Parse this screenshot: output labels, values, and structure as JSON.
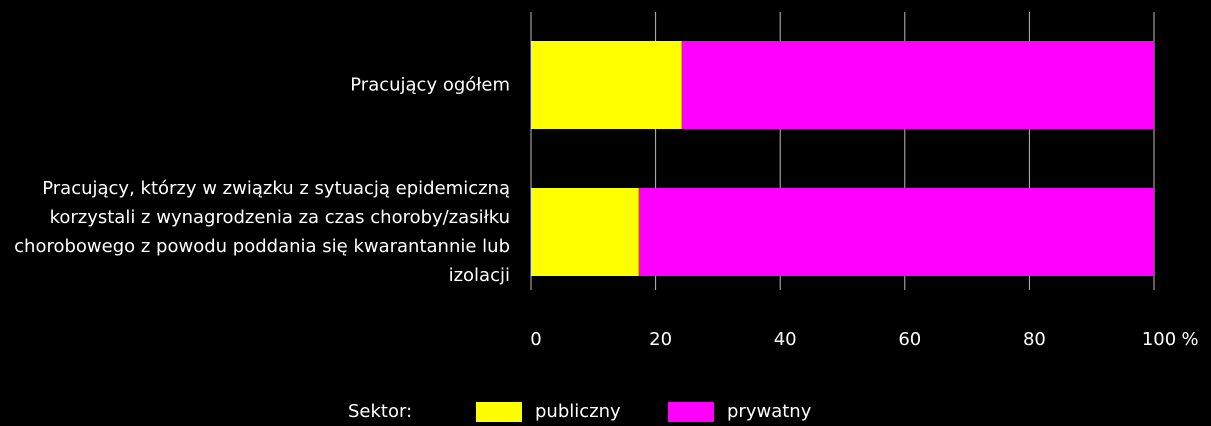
{
  "chart_data": {
    "type": "stacked-barh",
    "categories": [
      "Pracujący ogółem",
      "Pracujący, którzy w związku z sytuacją epidemiczną korzystali z wynagrodzenia za czas choroby/zasiłku chorobowego z powodu poddania się kwarantannie lub izolacji"
    ],
    "series": [
      {
        "name": "publiczny",
        "color": "#ffff00",
        "values": [
          24.2,
          17.3
        ]
      },
      {
        "name": "prywatny",
        "color": "#ff00ff",
        "values": [
          75.8,
          82.7
        ]
      }
    ],
    "xlim": [
      0,
      100
    ],
    "xticks": [
      0,
      20,
      40,
      60,
      80,
      100
    ],
    "xlabel": "%",
    "grid": true,
    "legend_title": "Sektor:",
    "legend": "bottom"
  }
}
